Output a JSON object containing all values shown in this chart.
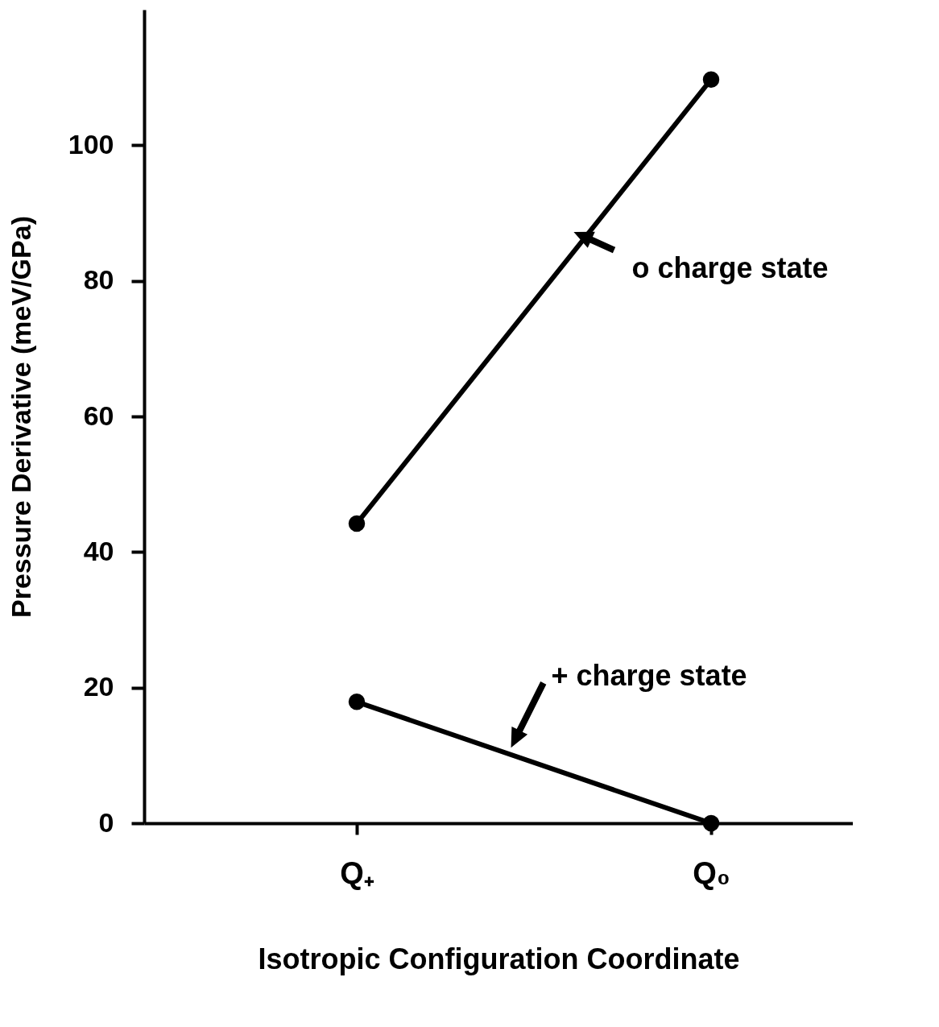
{
  "chart_data": {
    "type": "line",
    "xlabel": "Isotropic Configuration Coordinate",
    "ylabel": "Pressure Derivative (meV/GPa)",
    "categories": [
      "Q₊",
      "Q₀"
    ],
    "series": [
      {
        "name": "o charge state",
        "color": "#000000",
        "values": [
          44.2,
          109.7
        ]
      },
      {
        "name": "+ charge state",
        "color": "#000000",
        "values": [
          17.9,
          0
        ]
      }
    ],
    "ylim": [
      0,
      120
    ],
    "yticks": [
      0,
      20,
      40,
      60,
      80,
      100
    ],
    "grid": false,
    "marker": "circle",
    "line_style": "solid"
  }
}
